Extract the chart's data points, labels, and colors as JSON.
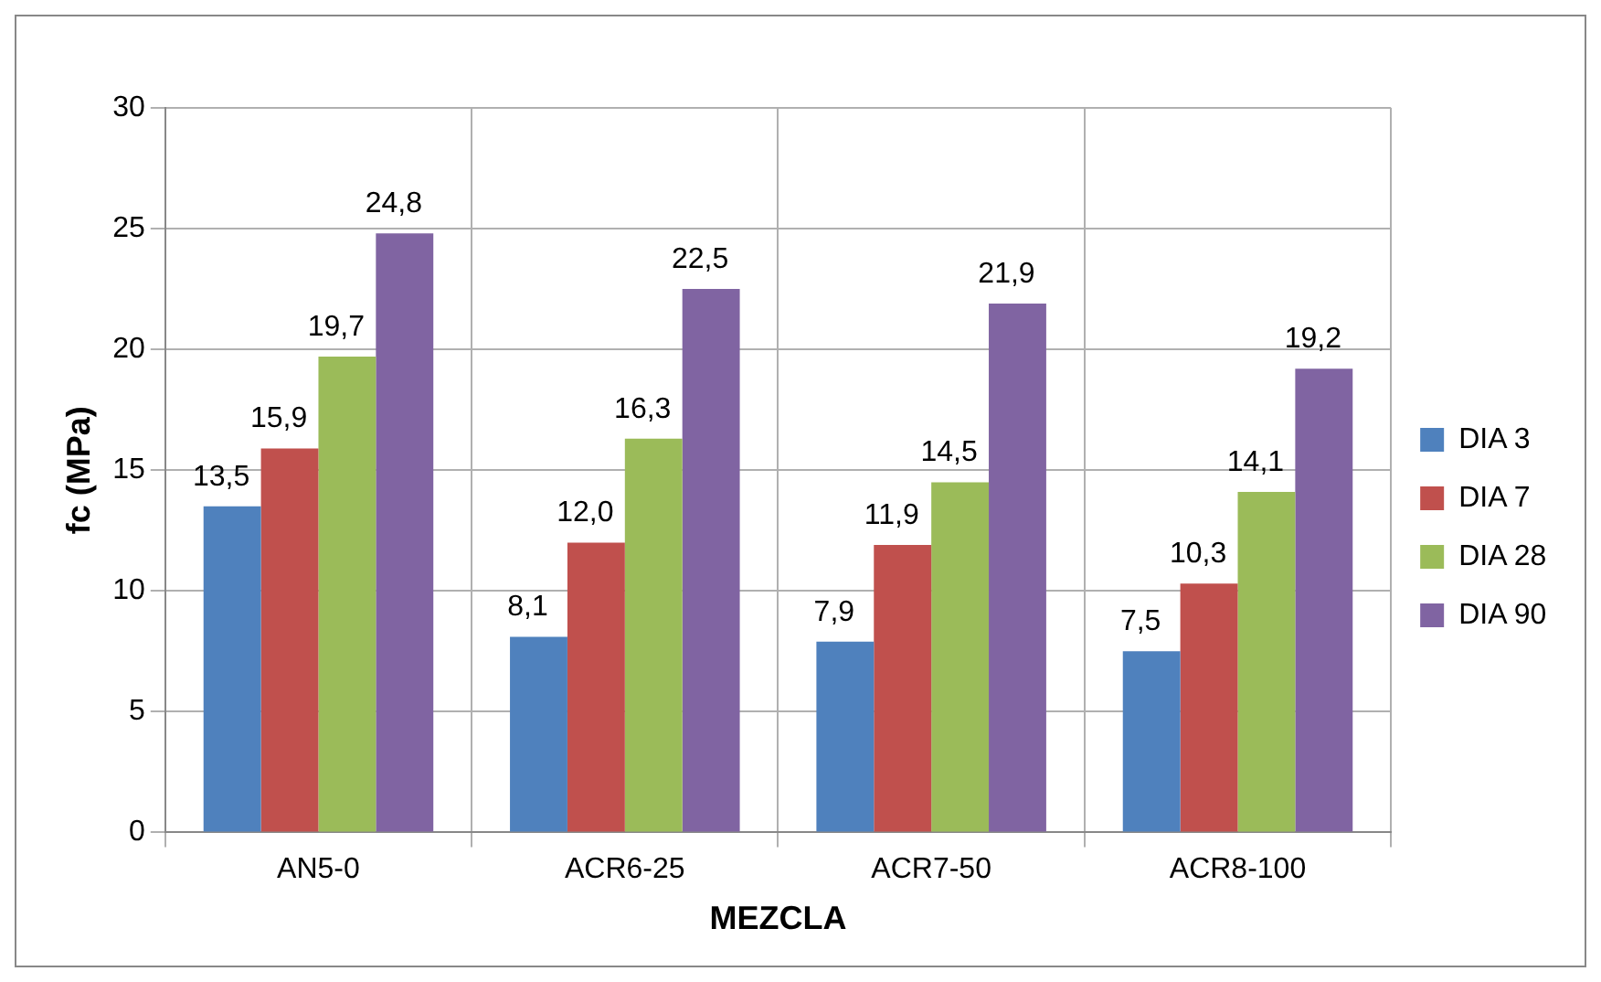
{
  "chart_data": {
    "type": "bar",
    "xlabel": "MEZCLA",
    "ylabel": "fc (MPa)",
    "categories": [
      "AN5-0",
      "ACR6-25",
      "ACR7-50",
      "ACR8-100"
    ],
    "series": [
      {
        "name": "DIA 3",
        "color": "#4f81bd",
        "values": [
          13.5,
          8.1,
          7.9,
          7.5
        ],
        "value_labels": [
          "13,5",
          "8,1",
          "7,9",
          "7,5"
        ]
      },
      {
        "name": "DIA 7",
        "color": "#c0504d",
        "values": [
          15.9,
          12.0,
          11.9,
          10.3
        ],
        "value_labels": [
          "15,9",
          "12,0",
          "11,9",
          "10,3"
        ]
      },
      {
        "name": "DIA 28",
        "color": "#9bbb59",
        "values": [
          19.7,
          16.3,
          14.5,
          14.1
        ],
        "value_labels": [
          "19,7",
          "16,3",
          "14,5",
          "14,1"
        ]
      },
      {
        "name": "DIA 90",
        "color": "#8064a2",
        "values": [
          24.8,
          22.5,
          21.9,
          19.2
        ],
        "value_labels": [
          "24,8",
          "22,5",
          "21,9",
          "19,2"
        ]
      }
    ],
    "ylim": [
      0,
      30
    ],
    "yticks": [
      0,
      5,
      10,
      15,
      20,
      25,
      30
    ],
    "grid": true,
    "legend": "right"
  }
}
